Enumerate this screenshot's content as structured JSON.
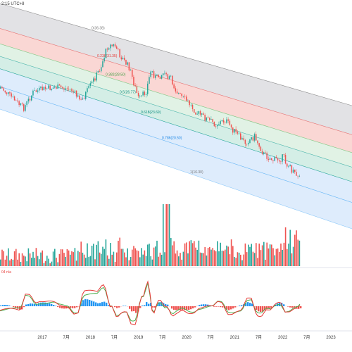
{
  "header": {
    "time_label": "2:15 UTC+8"
  },
  "indicator_label": "04  n/a",
  "colors": {
    "up": "#26a69a",
    "down": "#ef5350",
    "band_gray": "#d8d8dc",
    "band_red": "#f8c9c6",
    "band_green1": "#d7eedc",
    "band_green2": "#c6e8de",
    "band_blue": "#d3e6fb",
    "macd_line": "#e53935",
    "signal_line": "#4caf50",
    "hist_up": "#2196f3",
    "hist_down": "#ef5350"
  },
  "chart_data": {
    "type": "candlestick",
    "title": "",
    "x_ticks": [
      "2017",
      "7月",
      "2018",
      "7月",
      "2019",
      "7月",
      "2020",
      "7月",
      "2021",
      "7月",
      "2022",
      "7月",
      "2023"
    ],
    "fib_channel": {
      "levels": [
        {
          "ratio": 0,
          "label": "0(36.38)"
        },
        {
          "ratio": 0.236,
          "label": "0.236(31.35)"
        },
        {
          "ratio": 0.382,
          "label": "0.382(28.50)"
        },
        {
          "ratio": 0.5,
          "label": "0.5(26.77)"
        },
        {
          "ratio": 0.618,
          "label": "0.618(23.69)"
        },
        {
          "ratio": 0.786,
          "label": "0.786(20.50)"
        },
        {
          "ratio": 1,
          "label": "1(16.30)"
        }
      ]
    },
    "price_path": [
      {
        "x": 2016.0,
        "y": 0.76
      },
      {
        "x": 2016.6,
        "y": 0.92
      },
      {
        "x": 2016.8,
        "y": 0.74
      },
      {
        "x": 2017.0,
        "y": 0.68
      },
      {
        "x": 2017.3,
        "y": 0.62
      },
      {
        "x": 2017.6,
        "y": 0.6
      },
      {
        "x": 2017.8,
        "y": 0.68
      },
      {
        "x": 2018.0,
        "y": 0.5
      },
      {
        "x": 2018.2,
        "y": 0.32
      },
      {
        "x": 2018.35,
        "y": 0.1
      },
      {
        "x": 2018.5,
        "y": 0.08
      },
      {
        "x": 2018.6,
        "y": 0.15
      },
      {
        "x": 2018.8,
        "y": 0.24
      },
      {
        "x": 2018.95,
        "y": 0.44
      },
      {
        "x": 2019.0,
        "y": 0.5
      },
      {
        "x": 2019.15,
        "y": 0.4
      },
      {
        "x": 2019.25,
        "y": 0.2
      },
      {
        "x": 2019.35,
        "y": 0.26
      },
      {
        "x": 2019.5,
        "y": 0.2
      },
      {
        "x": 2019.65,
        "y": 0.22
      },
      {
        "x": 2019.75,
        "y": 0.3
      },
      {
        "x": 2019.85,
        "y": 0.35
      },
      {
        "x": 2020.0,
        "y": 0.38
      },
      {
        "x": 2020.2,
        "y": 0.45
      },
      {
        "x": 2020.4,
        "y": 0.48
      },
      {
        "x": 2020.6,
        "y": 0.5
      },
      {
        "x": 2020.8,
        "y": 0.44
      },
      {
        "x": 2021.0,
        "y": 0.52
      },
      {
        "x": 2021.2,
        "y": 0.58
      },
      {
        "x": 2021.4,
        "y": 0.5
      },
      {
        "x": 2021.6,
        "y": 0.63
      },
      {
        "x": 2021.8,
        "y": 0.65
      },
      {
        "x": 2022.0,
        "y": 0.6
      },
      {
        "x": 2022.2,
        "y": 0.7
      },
      {
        "x": 2022.35,
        "y": 0.73
      },
      {
        "x": 2022.45,
        "y": 0.7
      }
    ]
  }
}
